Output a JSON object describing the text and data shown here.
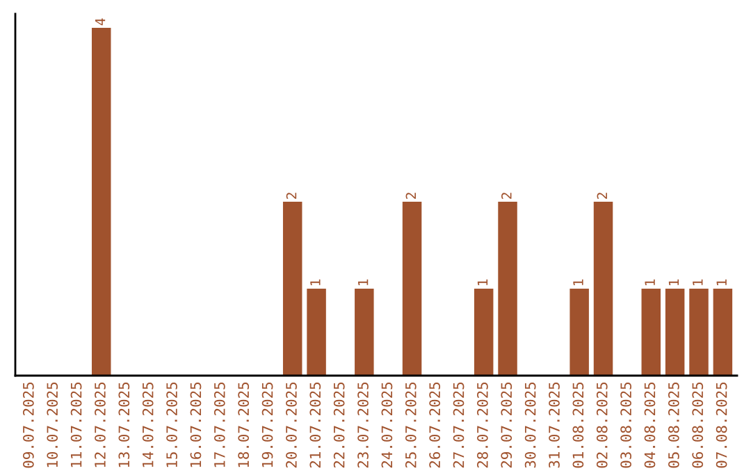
{
  "chart_data": {
    "type": "bar",
    "categories": [
      "09.07.2025",
      "10.07.2025",
      "11.07.2025",
      "12.07.2025",
      "13.07.2025",
      "14.07.2025",
      "15.07.2025",
      "16.07.2025",
      "17.07.2025",
      "18.07.2025",
      "19.07.2025",
      "20.07.2025",
      "21.07.2025",
      "22.07.2025",
      "23.07.2025",
      "24.07.2025",
      "25.07.2025",
      "26.07.2025",
      "27.07.2025",
      "28.07.2025",
      "29.07.2025",
      "30.07.2025",
      "31.07.2025",
      "01.08.2025",
      "02.08.2025",
      "03.08.2025",
      "04.08.2025",
      "05.08.2025",
      "06.08.2025",
      "07.08.2025"
    ],
    "values": [
      0,
      0,
      0,
      4,
      0,
      0,
      0,
      0,
      0,
      0,
      0,
      2,
      1,
      0,
      1,
      0,
      2,
      0,
      0,
      1,
      2,
      0,
      0,
      1,
      2,
      0,
      1,
      1,
      1,
      1
    ],
    "value_labels": [
      null,
      null,
      null,
      "4",
      null,
      null,
      null,
      null,
      null,
      null,
      null,
      "2",
      "1",
      null,
      "1",
      null,
      "2",
      null,
      null,
      "1",
      "2",
      null,
      null,
      "1",
      "2",
      null,
      "1",
      "1",
      "1",
      "1"
    ],
    "color": "#a0522d",
    "grid": false,
    "legend": false
  }
}
